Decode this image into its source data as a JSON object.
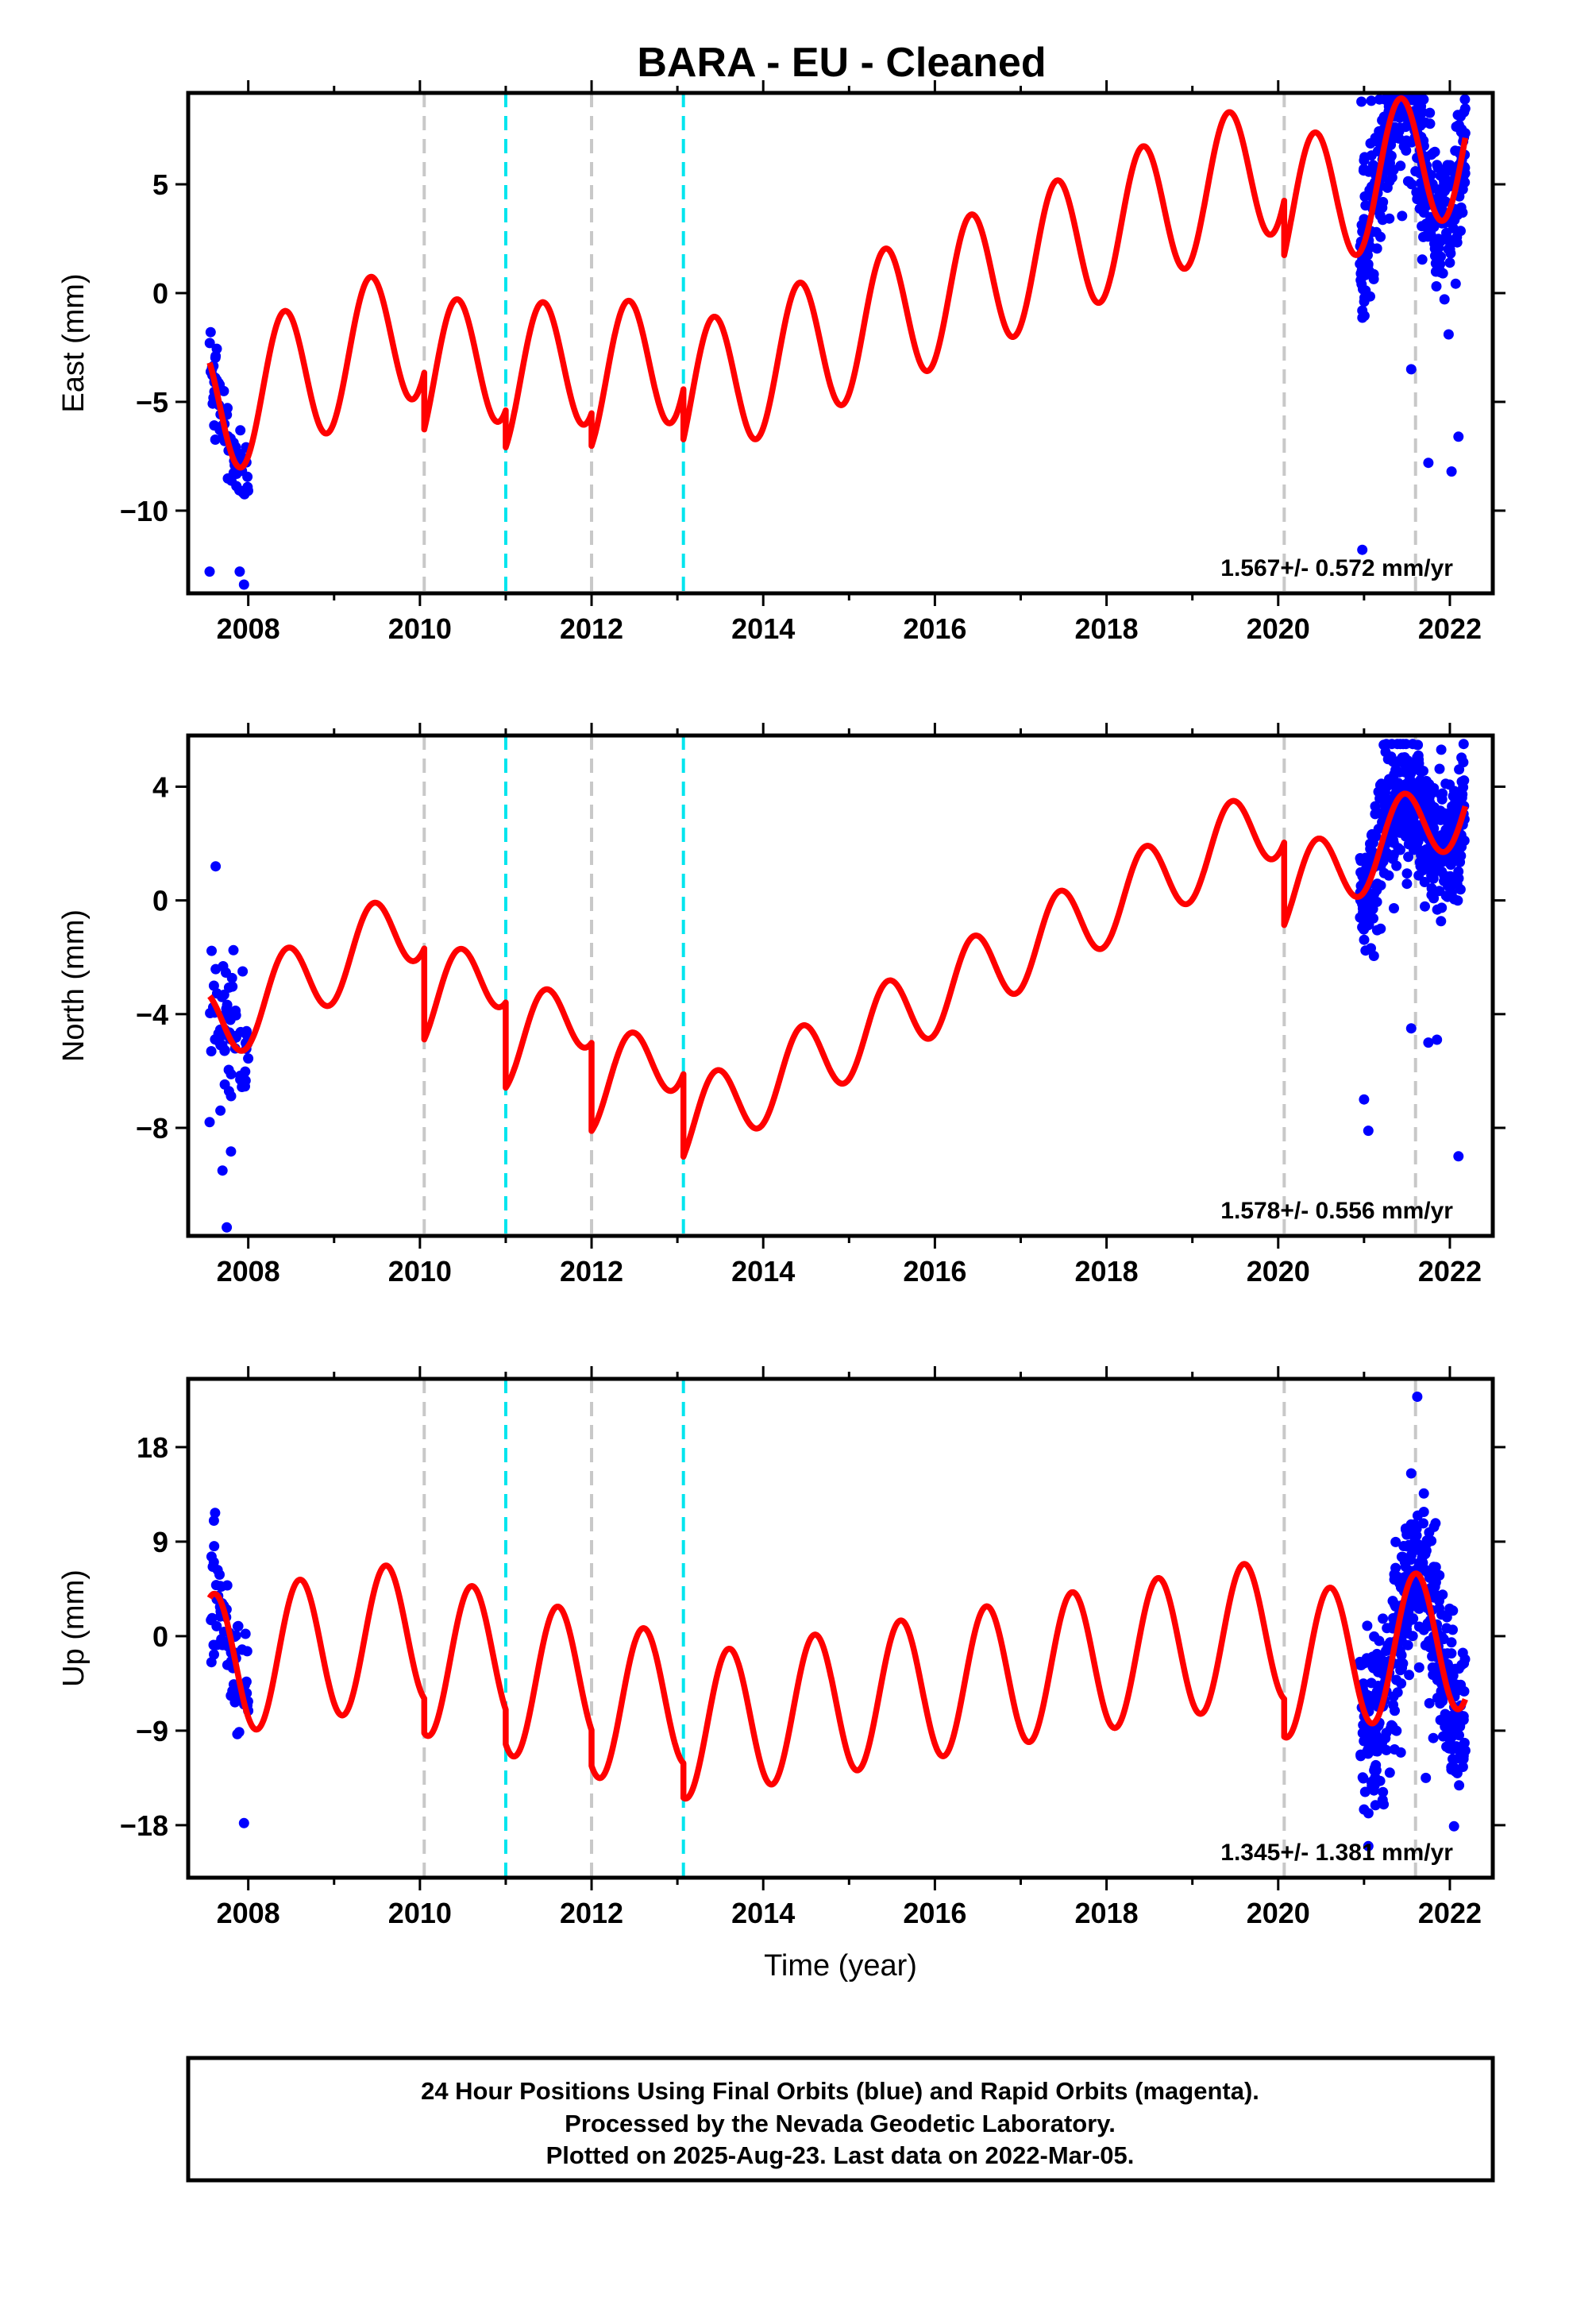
{
  "title": "BARA  - EU - Cleaned",
  "colors": {
    "data": "#0000ff",
    "model": "#ff0000",
    "step_equipment": "#c8c8c8",
    "step_earthquake": "#00e5ee"
  },
  "chart_data": [
    {
      "type": "scatter",
      "panel": "east",
      "ylabel": "East (mm)",
      "xlabel": "",
      "xlim": [
        2007.3,
        2022.5
      ],
      "ylim": [
        -13.8,
        9.2
      ],
      "yticks": [
        5,
        0,
        -5,
        -10
      ],
      "ytick_labels": [
        "5",
        "0",
        "−5",
        "−10"
      ],
      "xticks": [
        2008,
        2010,
        2012,
        2014,
        2016,
        2018,
        2020,
        2022
      ],
      "rate_label": "1.567+/- 0.572 mm/yr",
      "model": {
        "intercept": -5.47,
        "rate": 1.567,
        "amp": 3.2,
        "phase_peak": 0.42
      },
      "offsets": [
        {
          "t": 2010.05,
          "d": -2.6,
          "kind": "equipment"
        },
        {
          "t": 2011.0,
          "d": -1.7,
          "kind": "earthquake"
        },
        {
          "t": 2012.0,
          "d": -1.5,
          "kind": "equipment"
        },
        {
          "t": 2013.07,
          "d": -2.3,
          "kind": "earthquake"
        },
        {
          "t": 2020.07,
          "d": -2.5,
          "kind": "equipment"
        }
      ],
      "step_lines": [
        {
          "t": 2010.05,
          "kind": "equipment"
        },
        {
          "t": 2011.0,
          "kind": "earthquake"
        },
        {
          "t": 2012.0,
          "kind": "equipment"
        },
        {
          "t": 2013.07,
          "kind": "earthquake"
        },
        {
          "t": 2020.07,
          "kind": "equipment"
        },
        {
          "t": 2021.6,
          "kind": "equipment"
        }
      ],
      "data_segments": [
        {
          "t0": 2007.55,
          "t1": 2008.0,
          "n": 65,
          "scatter": 1.0
        },
        {
          "t0": 2020.95,
          "t1": 2022.18,
          "n": 420,
          "scatter": 1.6
        }
      ],
      "outliers": [
        [
          2007.55,
          -12.8
        ],
        [
          2007.9,
          -12.8
        ],
        [
          2007.95,
          -13.4
        ],
        [
          2007.62,
          -2.9
        ],
        [
          2020.97,
          8.8
        ],
        [
          2020.98,
          -11.8
        ],
        [
          2021.0,
          6.1
        ],
        [
          2021.55,
          -3.5
        ],
        [
          2021.6,
          5.6
        ],
        [
          2021.95,
          5.0
        ],
        [
          2022.02,
          -8.2
        ],
        [
          2022.1,
          -6.6
        ],
        [
          2021.75,
          -7.8
        ]
      ]
    },
    {
      "type": "scatter",
      "panel": "north",
      "ylabel": "North (mm)",
      "xlabel": "",
      "xlim": [
        2007.3,
        2022.5
      ],
      "ylim": [
        -11.8,
        5.8
      ],
      "yticks": [
        4,
        0,
        -4,
        -8
      ],
      "ytick_labels": [
        "4",
        "0",
        "−4",
        "−8"
      ],
      "xticks": [
        2008,
        2010,
        2012,
        2014,
        2016,
        2018,
        2020,
        2022
      ],
      "rate_label": "1.578+/- 0.556 mm/yr",
      "model": {
        "intercept": -4.58,
        "rate": 1.578,
        "amp": 1.4,
        "phase_peak": 0.45
      },
      "offsets": [
        {
          "t": 2010.05,
          "d": -3.2,
          "kind": "equipment"
        },
        {
          "t": 2011.0,
          "d": -3.0,
          "kind": "earthquake"
        },
        {
          "t": 2012.0,
          "d": -3.1,
          "kind": "equipment"
        },
        {
          "t": 2013.07,
          "d": -2.9,
          "kind": "earthquake"
        },
        {
          "t": 2020.07,
          "d": -2.9,
          "kind": "equipment"
        }
      ],
      "step_lines": [
        {
          "t": 2010.05,
          "kind": "equipment"
        },
        {
          "t": 2011.0,
          "kind": "earthquake"
        },
        {
          "t": 2012.0,
          "kind": "equipment"
        },
        {
          "t": 2013.07,
          "kind": "earthquake"
        },
        {
          "t": 2020.07,
          "kind": "equipment"
        },
        {
          "t": 2021.6,
          "kind": "equipment"
        }
      ],
      "data_segments": [
        {
          "t0": 2007.55,
          "t1": 2008.0,
          "n": 65,
          "scatter": 1.3
        },
        {
          "t0": 2020.95,
          "t1": 2022.18,
          "n": 440,
          "scatter": 1.3
        }
      ],
      "outliers": [
        [
          2007.62,
          1.2
        ],
        [
          2007.7,
          -9.5
        ],
        [
          2007.75,
          -11.5
        ],
        [
          2007.55,
          -7.8
        ],
        [
          2021.05,
          -8.1
        ],
        [
          2021.0,
          -7.0
        ],
        [
          2021.55,
          -4.5
        ],
        [
          2021.75,
          -5.0
        ],
        [
          2021.9,
          5.3
        ],
        [
          2022.1,
          -9.0
        ],
        [
          2021.85,
          -4.9
        ]
      ]
    },
    {
      "type": "scatter",
      "panel": "up",
      "ylabel": "Up (mm)",
      "xlabel": "Time (year)",
      "xlim": [
        2007.3,
        2022.5
      ],
      "ylim": [
        -23.0,
        24.5
      ],
      "yticks": [
        18,
        9,
        0,
        -9,
        -18
      ],
      "ytick_labels": [
        "18",
        "9",
        "0",
        "−9",
        "−18"
      ],
      "xticks": [
        2008,
        2010,
        2012,
        2014,
        2016,
        2018,
        2020,
        2022
      ],
      "rate_label": "1.345+/- 1.381 mm/yr",
      "model": {
        "intercept": -2.9,
        "rate": 1.345,
        "amp": 6.8,
        "phase_peak": 0.6
      },
      "offsets": [
        {
          "t": 2010.05,
          "d": -3.3,
          "kind": "equipment"
        },
        {
          "t": 2011.0,
          "d": -3.3,
          "kind": "earthquake"
        },
        {
          "t": 2012.0,
          "d": -3.4,
          "kind": "equipment"
        },
        {
          "t": 2013.07,
          "d": -3.3,
          "kind": "earthquake"
        },
        {
          "t": 2020.07,
          "d": -3.6,
          "kind": "equipment"
        }
      ],
      "step_lines": [
        {
          "t": 2010.05,
          "kind": "equipment"
        },
        {
          "t": 2011.0,
          "kind": "earthquake"
        },
        {
          "t": 2012.0,
          "kind": "equipment"
        },
        {
          "t": 2013.07,
          "kind": "earthquake"
        },
        {
          "t": 2020.07,
          "kind": "equipment"
        },
        {
          "t": 2021.6,
          "kind": "equipment"
        }
      ],
      "data_segments": [
        {
          "t0": 2007.55,
          "t1": 2008.0,
          "n": 70,
          "scatter": 3.2
        },
        {
          "t0": 2020.95,
          "t1": 2022.18,
          "n": 460,
          "scatter": 4.0
        }
      ],
      "outliers": [
        [
          2007.6,
          11.0
        ],
        [
          2007.95,
          -17.8
        ],
        [
          2021.05,
          -20.0
        ],
        [
          2021.0,
          -16.5
        ],
        [
          2021.62,
          22.8
        ],
        [
          2021.3,
          -13.0
        ],
        [
          2021.55,
          15.5
        ],
        [
          2021.72,
          -13.5
        ]
      ]
    }
  ],
  "caption": {
    "line1": "24 Hour Positions Using Final Orbits (blue) and Rapid Orbits (magenta).",
    "line2": "Processed by the Nevada Geodetic Laboratory.",
    "line3": "Plotted on 2025-Aug-23. Last data on 2022-Mar-05."
  }
}
